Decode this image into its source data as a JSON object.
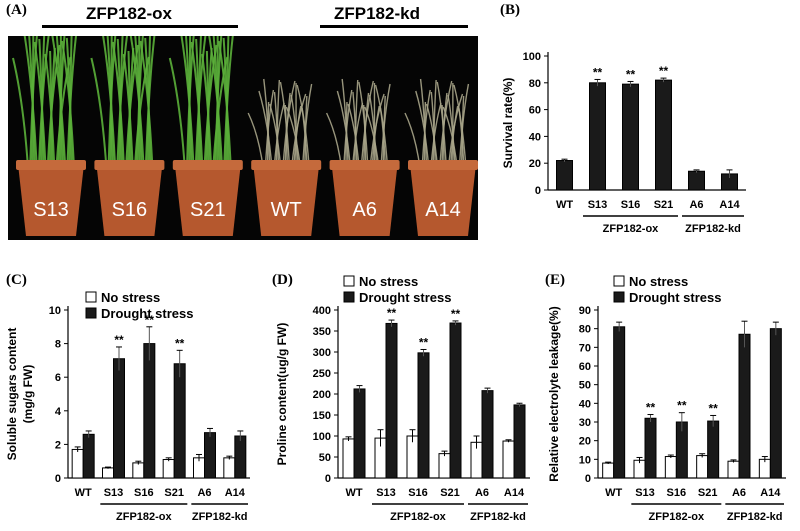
{
  "panels": {
    "A": "(A)",
    "B": "(B)",
    "C": "(C)",
    "D": "(D)",
    "E": "(E)"
  },
  "photo": {
    "group_ox": "ZFP182-ox",
    "group_kd": "ZFP182-kd",
    "pots": [
      "S13",
      "S16",
      "S21",
      "WT",
      "A6",
      "A14"
    ]
  },
  "colors": {
    "no_stress": "#ffffff",
    "drought_stress": "#1a1a1a",
    "pot": "#b5582e",
    "green_plant": "#5bb03a",
    "wilted_plant": "#a8a58a"
  },
  "chart_data": [
    {
      "id": "B",
      "type": "bar",
      "categories": [
        "WT",
        "S13",
        "S16",
        "S21",
        "A6",
        "A14"
      ],
      "series": [
        {
          "values": [
            22,
            80,
            79,
            82,
            14,
            12
          ],
          "errors": [
            1,
            2.5,
            2,
            1.5,
            1,
            3
          ]
        }
      ],
      "significance": [
        "",
        "**",
        "**",
        "**",
        "",
        ""
      ],
      "ylabel": "Survival rate(%)",
      "ylim": [
        0,
        100
      ],
      "yticks": [
        0,
        20,
        40,
        60,
        80,
        100
      ],
      "groups": [
        {
          "label": "ZFP182-ox",
          "from": 1,
          "to": 3
        },
        {
          "label": "ZFP182-kd",
          "from": 4,
          "to": 5
        }
      ]
    },
    {
      "id": "C",
      "type": "bar",
      "categories": [
        "WT",
        "S13",
        "S16",
        "S21",
        "A6",
        "A14"
      ],
      "series": [
        {
          "name": "No stress",
          "values": [
            1.7,
            0.6,
            0.9,
            1.1,
            1.2,
            1.2
          ],
          "errors": [
            0.15,
            0.05,
            0.1,
            0.1,
            0.2,
            0.1
          ]
        },
        {
          "name": "Drought stress",
          "values": [
            2.6,
            7.1,
            8.0,
            6.8,
            2.7,
            2.5
          ],
          "errors": [
            0.2,
            0.7,
            1.0,
            0.8,
            0.25,
            0.3
          ]
        }
      ],
      "significance": [
        "",
        "**",
        "**",
        "**",
        "",
        ""
      ],
      "ylabel": "Soluble sugars content",
      "ylabel2": "(mg/g FW)",
      "ylim": [
        0,
        10
      ],
      "yticks": [
        0,
        2,
        4,
        6,
        8,
        10
      ],
      "groups": [
        {
          "label": "ZFP182-ox",
          "from": 1,
          "to": 3
        },
        {
          "label": "ZFP182-kd",
          "from": 4,
          "to": 5
        }
      ]
    },
    {
      "id": "D",
      "type": "bar",
      "categories": [
        "WT",
        "S13",
        "S16",
        "S21",
        "A6",
        "A14"
      ],
      "series": [
        {
          "name": "No stress",
          "values": [
            93,
            95,
            100,
            58,
            85,
            88
          ],
          "errors": [
            5,
            20,
            15,
            6,
            15,
            3
          ]
        },
        {
          "name": "Drought stress",
          "values": [
            212,
            368,
            298,
            369,
            208,
            174
          ],
          "errors": [
            8,
            8,
            8,
            5,
            6,
            4
          ]
        }
      ],
      "significance": [
        "",
        "**",
        "**",
        "**",
        "",
        ""
      ],
      "ylabel": "Proline content(ug/g FW)",
      "ylim": [
        0,
        400
      ],
      "yticks": [
        0,
        50,
        100,
        150,
        200,
        250,
        300,
        350,
        400
      ],
      "groups": [
        {
          "label": "ZFP182-ox",
          "from": 1,
          "to": 3
        },
        {
          "label": "ZFP182-kd",
          "from": 4,
          "to": 5
        }
      ]
    },
    {
      "id": "E",
      "type": "bar",
      "categories": [
        "WT",
        "S13",
        "S16",
        "S21",
        "A6",
        "A14"
      ],
      "series": [
        {
          "name": "No stress",
          "values": [
            8,
            9.5,
            11.5,
            12,
            9,
            10
          ],
          "errors": [
            0.5,
            1.5,
            0.8,
            1,
            0.7,
            1.5
          ]
        },
        {
          "name": "Drought stress",
          "values": [
            81,
            32,
            30,
            30.5,
            77,
            80
          ],
          "errors": [
            2.5,
            2,
            5,
            3,
            7,
            3.5
          ]
        }
      ],
      "significance": [
        "",
        "**",
        "**",
        "**",
        "",
        ""
      ],
      "ylabel": "Relative electrolyte leakage(%)",
      "ylim": [
        0,
        90
      ],
      "yticks": [
        0,
        10,
        20,
        30,
        40,
        50,
        60,
        70,
        80,
        90
      ],
      "groups": [
        {
          "label": "ZFP182-ox",
          "from": 1,
          "to": 3
        },
        {
          "label": "ZFP182-kd",
          "from": 4,
          "to": 5
        }
      ]
    }
  ]
}
